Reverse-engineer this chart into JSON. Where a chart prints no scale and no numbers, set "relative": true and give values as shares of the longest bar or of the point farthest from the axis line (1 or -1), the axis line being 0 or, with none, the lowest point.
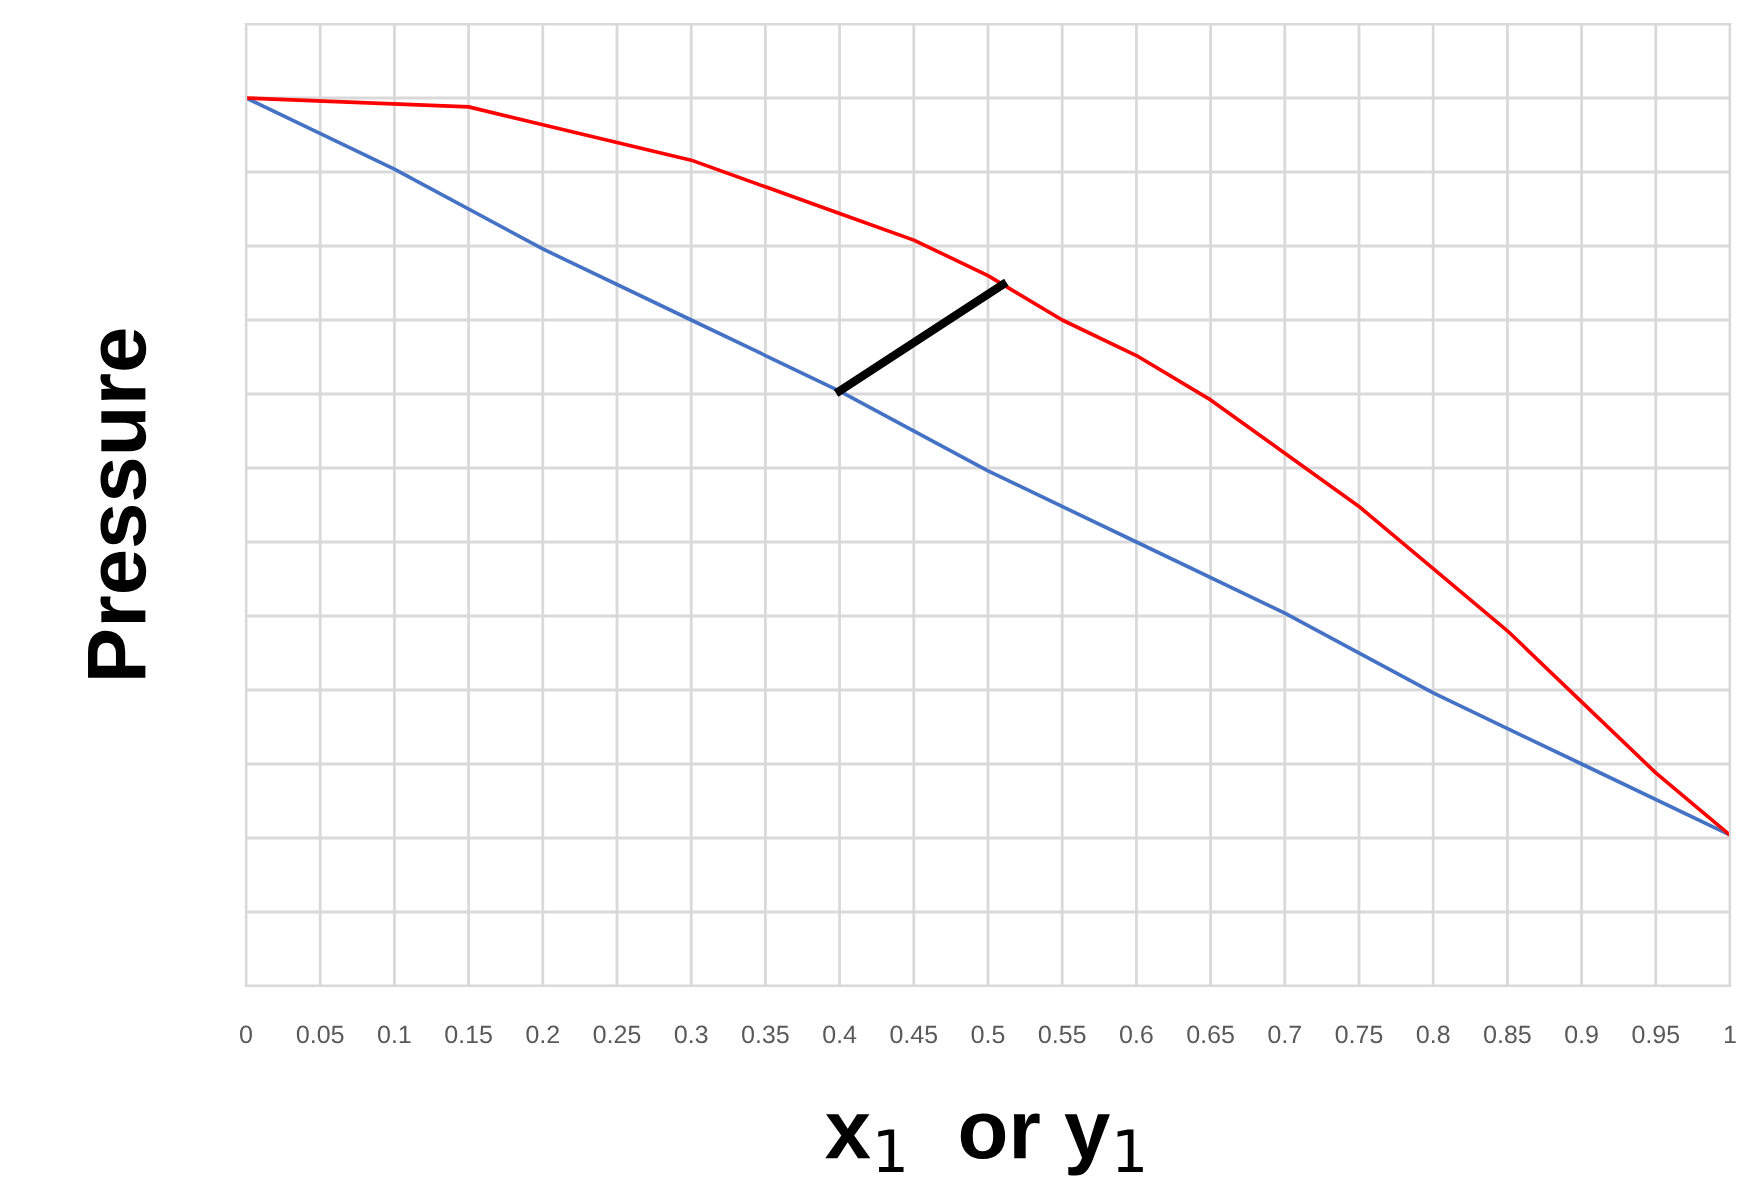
{
  "chart_data": {
    "type": "line",
    "relative": true,
    "xlabel": "x$_{1}$  or y$_{1}$",
    "ylabel": "Pressure",
    "xlim": [
      0,
      1
    ],
    "xticks": [
      0,
      0.05,
      0.1,
      0.15,
      0.2,
      0.25,
      0.3,
      0.35,
      0.4,
      0.45,
      0.5,
      0.55,
      0.6,
      0.65,
      0.7,
      0.75,
      0.8,
      0.85,
      0.9,
      0.95,
      1
    ],
    "grid": true,
    "legend": false,
    "tick_labels": "x",
    "series": [
      {
        "color": "#4472c4",
        "x": [
          0,
          0.1,
          0.2,
          0.3,
          0.4,
          0.5,
          0.6,
          0.7,
          0.8,
          0.9,
          1
        ],
        "values": [
          1,
          0.92,
          0.83,
          0.75,
          0.67,
          0.58,
          0.5,
          0.42,
          0.33,
          0.25,
          0.17
        ]
      },
      {
        "color": "#ff0000",
        "x": [
          0,
          0.15,
          0.2,
          0.25,
          0.3,
          0.35,
          0.4,
          0.45,
          0.5,
          0.55,
          0.6,
          0.65,
          0.7,
          0.75,
          0.8,
          0.85,
          0.9,
          0.95,
          1
        ],
        "values": [
          1,
          0.99,
          0.97,
          0.95,
          0.93,
          0.9,
          0.87,
          0.84,
          0.8,
          0.75,
          0.71,
          0.66,
          0.6,
          0.54,
          0.47,
          0.4,
          0.32,
          0.24,
          0.17
        ]
      },
      {
        "color": "#000000",
        "x": [
          0.4,
          0.51
        ],
        "values": [
          0.67,
          0.79
        ]
      }
    ]
  }
}
